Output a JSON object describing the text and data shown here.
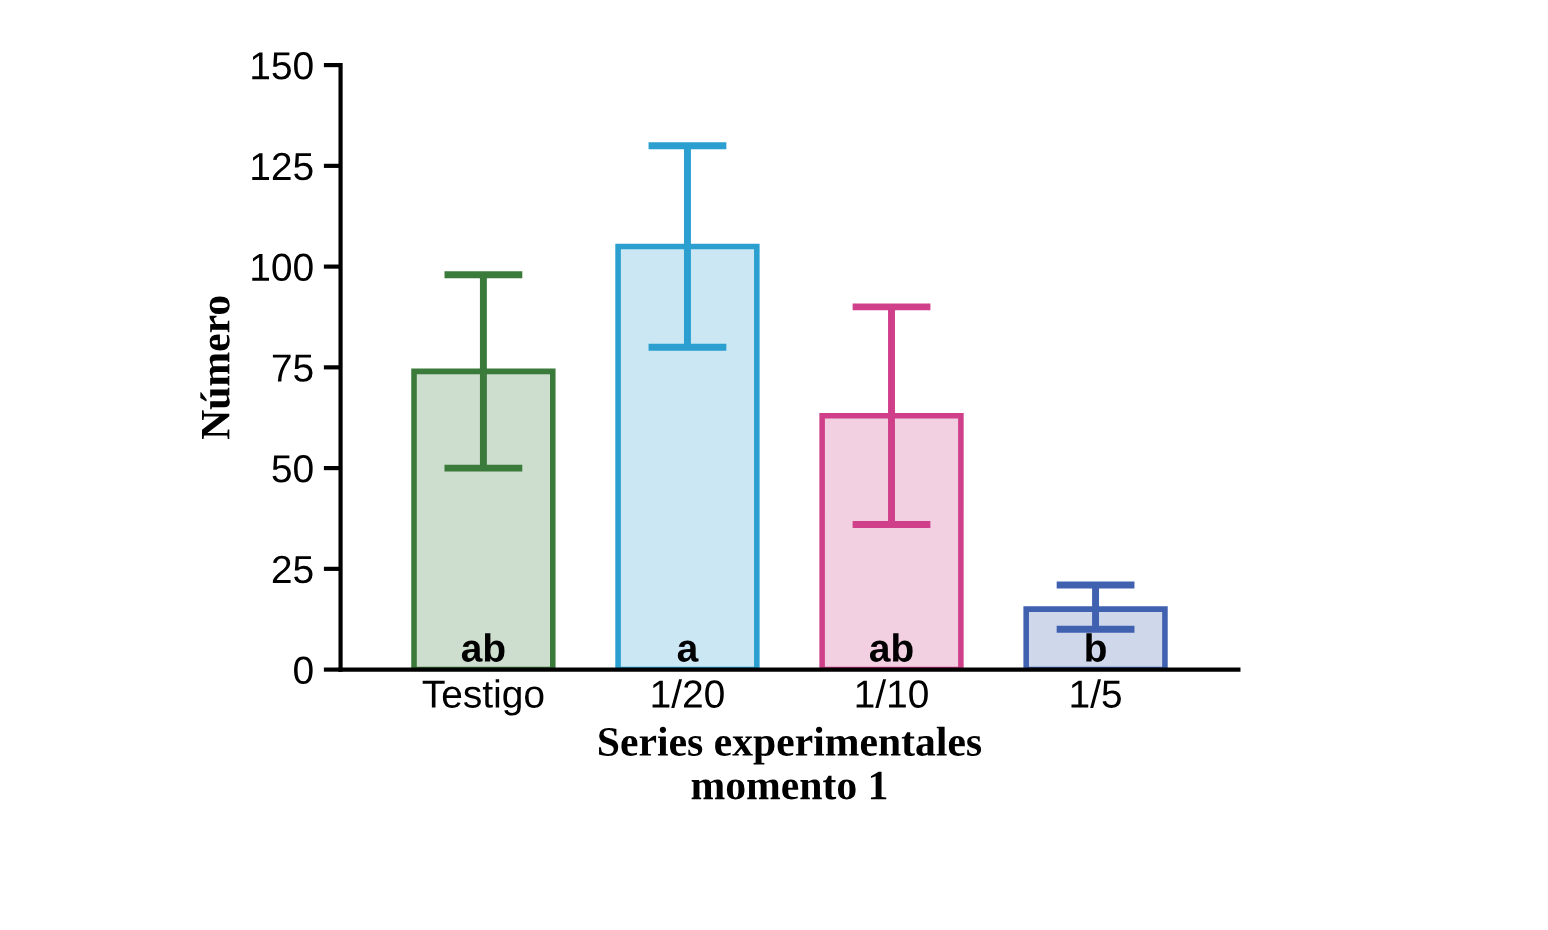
{
  "chart_data": {
    "type": "bar",
    "ylabel": "Número",
    "xlabel": "Series experimentales\nmomento 1",
    "categories": [
      "Testigo",
      "1/20",
      "1/10",
      "1/5"
    ],
    "values": [
      74,
      105,
      63,
      15
    ],
    "errors": [
      [
        50,
        98
      ],
      [
        80,
        130
      ],
      [
        36,
        90
      ],
      [
        10,
        21
      ]
    ],
    "colors": [
      "#3a7a3a",
      "#2a9fd0",
      "#d0408a",
      "#4060b0"
    ],
    "ylim": [
      0,
      150
    ],
    "yticks": [
      0,
      25,
      50,
      75,
      100,
      125,
      150
    ],
    "grid": false,
    "legend": false,
    "annotations": [
      {
        "text": "ab",
        "x": "Testigo",
        "y": 0
      },
      {
        "text": "a",
        "x": "1/20",
        "y": 0
      },
      {
        "text": "ab",
        "x": "1/10",
        "y": 0
      },
      {
        "text": "b",
        "x": "1/5",
        "y": 0
      }
    ]
  }
}
